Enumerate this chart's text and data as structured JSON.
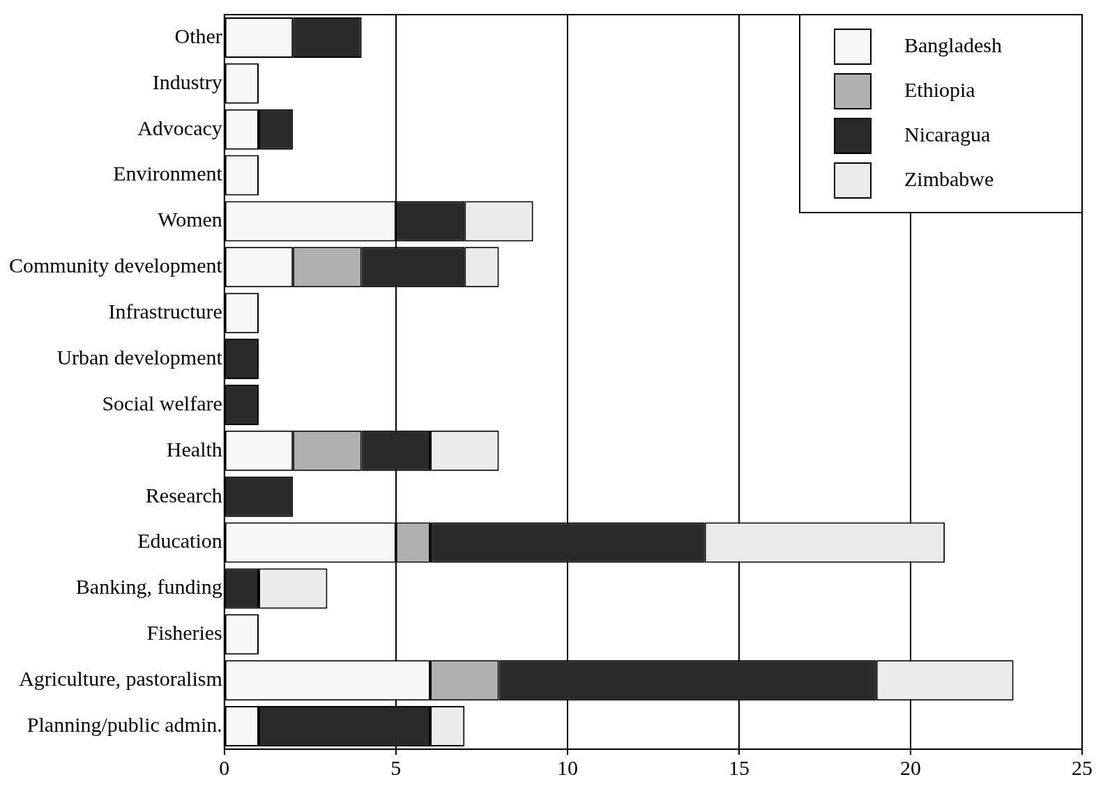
{
  "chart_data": {
    "type": "bar",
    "orientation": "horizontal",
    "stacked": true,
    "categories": [
      "Other",
      "Industry",
      "Advocacy",
      "Environment",
      "Women",
      "Community development",
      "Infrastructure",
      "Urban development",
      "Social welfare",
      "Health",
      "Research",
      "Education",
      "Banking, funding",
      "Fisheries",
      "Agriculture, pastoralism",
      "Planning/public admin."
    ],
    "series": [
      {
        "name": "Bangladesh",
        "color": "#f7f7f7",
        "values": [
          2,
          1,
          1,
          1,
          5,
          2,
          1,
          null,
          null,
          2,
          null,
          5,
          null,
          1,
          6,
          1
        ]
      },
      {
        "name": "Ethiopia",
        "color": "#b0b0b0",
        "values": [
          null,
          null,
          null,
          null,
          null,
          2,
          null,
          null,
          null,
          2,
          null,
          1,
          null,
          null,
          2,
          null
        ]
      },
      {
        "name": "Nicaragua",
        "color": "#2a2a2a",
        "values": [
          2,
          null,
          1,
          null,
          2,
          3,
          null,
          1,
          1,
          2,
          2,
          8,
          1,
          null,
          11,
          5
        ]
      },
      {
        "name": "Zimbabwe",
        "color": "#ebebeb",
        "values": [
          null,
          null,
          null,
          null,
          2,
          1,
          null,
          null,
          null,
          2,
          null,
          7,
          2,
          null,
          4,
          1
        ]
      }
    ],
    "xlim": [
      0,
      25
    ],
    "xticks": [
      0,
      5,
      10,
      15,
      20,
      25
    ],
    "grid": "x",
    "legend": "top right"
  }
}
